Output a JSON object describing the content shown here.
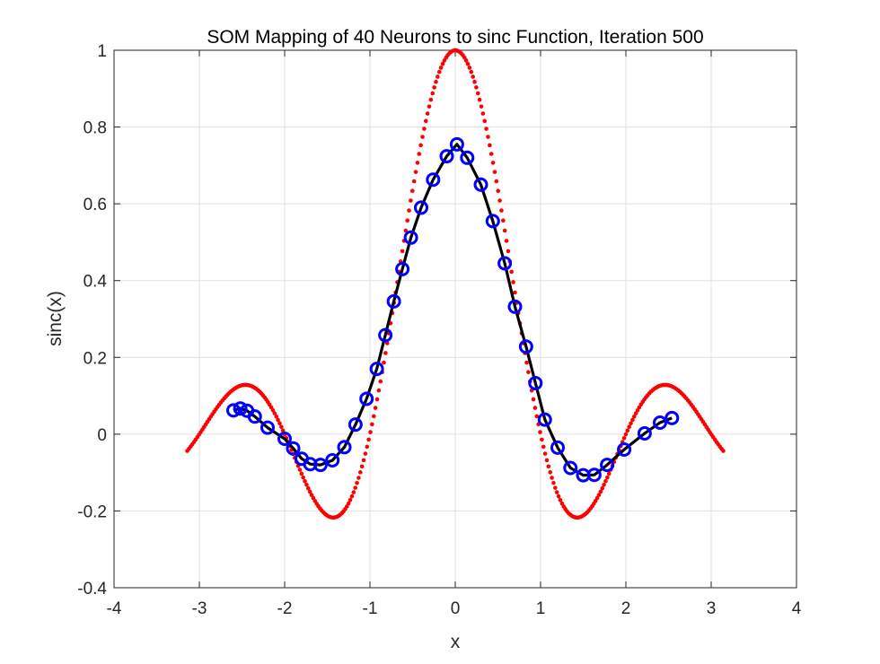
{
  "chart_data": {
    "type": "line",
    "title": "SOM Mapping of 40 Neurons to sinc Function, Iteration 500",
    "xlabel": "x",
    "ylabel": "sinc(x)",
    "xlim": [
      -4,
      4
    ],
    "ylim": [
      -0.4,
      1
    ],
    "xticks": [
      "-4",
      "-3",
      "-2",
      "-1",
      "0",
      "1",
      "2",
      "3",
      "4"
    ],
    "yticks": [
      "-0.4",
      "-0.2",
      "0",
      "0.2",
      "0.4",
      "0.6",
      "0.8",
      "1"
    ],
    "grid": true,
    "colors": {
      "target": "#ff0000",
      "neurons": "#0000ff",
      "path": "#000000"
    },
    "series": [
      {
        "kind": "dotted-curve",
        "formula": "sin(pi*x)/(pi*x)",
        "x_range": [
          -3.1416,
          3.1416
        ],
        "n_points": 320
      },
      {
        "kind": "neurons",
        "x": [
          -2.6,
          -2.52,
          -2.44,
          -2.35,
          -2.2,
          -2.0,
          -1.9,
          -1.8,
          -1.7,
          -1.58,
          -1.44,
          -1.3,
          -1.17,
          -1.04,
          -0.92,
          -0.82,
          -0.72,
          -0.62,
          -0.52,
          -0.4,
          -0.26,
          -0.1,
          0.02,
          0.14,
          0.3,
          0.44,
          0.58,
          0.7,
          0.83,
          0.94,
          1.05,
          1.2,
          1.35,
          1.5,
          1.63,
          1.78,
          1.98,
          2.22,
          2.4,
          2.54
        ],
        "y": [
          0.062,
          0.067,
          0.061,
          0.046,
          0.017,
          -0.012,
          -0.037,
          -0.064,
          -0.078,
          -0.08,
          -0.068,
          -0.034,
          0.025,
          0.092,
          0.17,
          0.258,
          0.346,
          0.43,
          0.512,
          0.59,
          0.663,
          0.724,
          0.755,
          0.72,
          0.65,
          0.555,
          0.445,
          0.332,
          0.228,
          0.133,
          0.038,
          -0.035,
          -0.088,
          -0.107,
          -0.106,
          -0.08,
          -0.04,
          0.002,
          0.03,
          0.042
        ]
      }
    ]
  }
}
